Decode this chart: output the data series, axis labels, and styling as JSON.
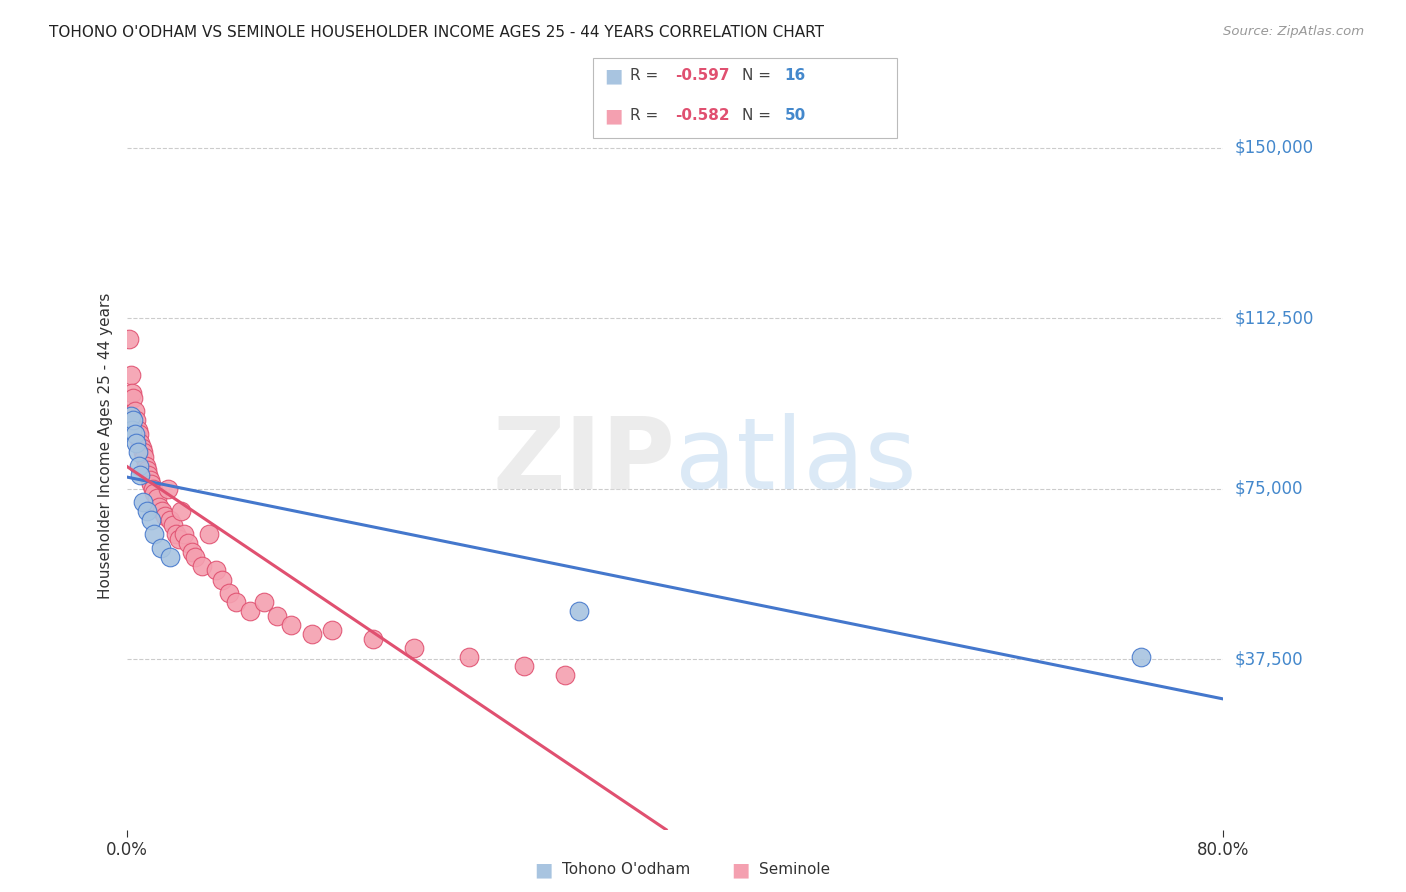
{
  "title": "TOHONO O'ODHAM VS SEMINOLE HOUSEHOLDER INCOME AGES 25 - 44 YEARS CORRELATION CHART",
  "source": "Source: ZipAtlas.com",
  "ylabel": "Householder Income Ages 25 - 44 years",
  "xlim": [
    0.0,
    0.8
  ],
  "ylim": [
    0,
    168750
  ],
  "yticks": [
    37500,
    75000,
    112500,
    150000
  ],
  "ytick_labels": [
    "$37,500",
    "$75,000",
    "$112,500",
    "$150,000"
  ],
  "xtick_labels": [
    "0.0%",
    "80.0%"
  ],
  "xticks": [
    0.0,
    0.8
  ],
  "background_color": "#ffffff",
  "grid_color": "#cccccc",
  "tohono_color": "#a8c4e0",
  "seminole_color": "#f4a0b0",
  "tohono_line_color": "#4477cc",
  "seminole_line_color": "#e05070",
  "seminole_dash_color": "#f0b8c8",
  "tohono_label": "Tohono O'odham",
  "seminole_label": "Seminole",
  "R_tohono": "-0.597",
  "N_tohono": "16",
  "R_seminole": "-0.582",
  "N_seminole": "50",
  "tohono_x": [
    0.003,
    0.004,
    0.005,
    0.006,
    0.007,
    0.008,
    0.009,
    0.01,
    0.012,
    0.015,
    0.018,
    0.02,
    0.025,
    0.032,
    0.33,
    0.74
  ],
  "tohono_y": [
    91000,
    88000,
    90000,
    87000,
    85000,
    83000,
    80000,
    78000,
    72000,
    70000,
    68000,
    65000,
    62000,
    60000,
    48000,
    38000
  ],
  "seminole_x": [
    0.002,
    0.003,
    0.004,
    0.005,
    0.006,
    0.007,
    0.008,
    0.009,
    0.01,
    0.011,
    0.012,
    0.013,
    0.014,
    0.015,
    0.016,
    0.017,
    0.018,
    0.019,
    0.02,
    0.022,
    0.024,
    0.026,
    0.028,
    0.03,
    0.032,
    0.034,
    0.036,
    0.038,
    0.04,
    0.042,
    0.045,
    0.048,
    0.05,
    0.055,
    0.06,
    0.065,
    0.07,
    0.075,
    0.08,
    0.09,
    0.1,
    0.11,
    0.12,
    0.135,
    0.15,
    0.18,
    0.21,
    0.25,
    0.29,
    0.32
  ],
  "seminole_y": [
    108000,
    100000,
    96000,
    95000,
    92000,
    90000,
    88000,
    87000,
    85000,
    84000,
    83000,
    82000,
    80000,
    79000,
    78000,
    77000,
    76000,
    75000,
    74000,
    73000,
    71000,
    70000,
    69000,
    75000,
    68000,
    67000,
    65000,
    64000,
    70000,
    65000,
    63000,
    61000,
    60000,
    58000,
    65000,
    57000,
    55000,
    52000,
    50000,
    48000,
    50000,
    47000,
    45000,
    43000,
    44000,
    42000,
    40000,
    38000,
    36000,
    34000
  ]
}
